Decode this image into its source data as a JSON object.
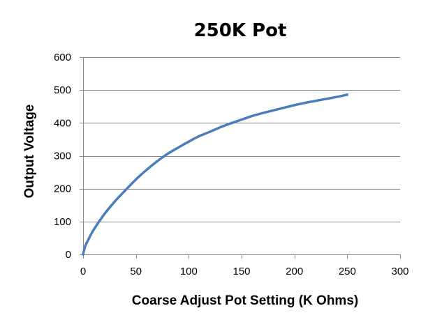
{
  "chart_data": {
    "type": "line",
    "title": "250K Pot",
    "xlabel": "Coarse Adjust Pot Setting (K Ohms)",
    "ylabel": "Output Voltage",
    "xlim": [
      0,
      300
    ],
    "ylim": [
      0,
      600
    ],
    "x_ticks": [
      0,
      50,
      100,
      150,
      200,
      250,
      300
    ],
    "y_ticks": [
      0,
      100,
      200,
      300,
      400,
      500,
      600
    ],
    "grid": "horizontal",
    "legend": "none",
    "series": [
      {
        "color": "#4a7ebb",
        "x": [
          0,
          2,
          5,
          10,
          20,
          30,
          40,
          50,
          60,
          70,
          80,
          90,
          100,
          110,
          120,
          130,
          140,
          150,
          160,
          170,
          180,
          190,
          200,
          210,
          220,
          230,
          240,
          250
        ],
        "y": [
          0,
          25,
          45,
          75,
          122,
          161,
          195,
          228,
          257,
          283,
          306,
          325,
          343,
          360,
          373,
          387,
          399,
          410,
          421,
          430,
          438,
          446,
          454,
          461,
          467,
          473,
          479,
          486
        ]
      }
    ]
  }
}
